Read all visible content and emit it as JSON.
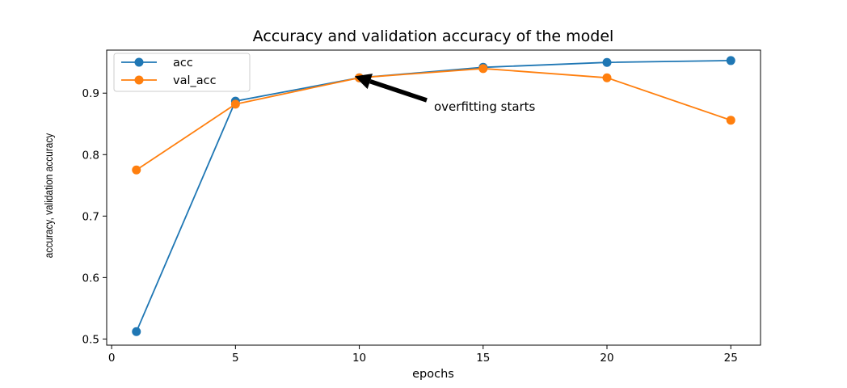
{
  "chart_data": {
    "type": "line",
    "title": "Accuracy and validation accuracy of the model",
    "xlabel": "epochs",
    "ylabel": "accuracy, validation accuracy",
    "xlim": [
      -0.2,
      26.2
    ],
    "ylim": [
      0.49,
      0.97
    ],
    "xticks": [
      0,
      5,
      10,
      15,
      20,
      25
    ],
    "yticks": [
      0.5,
      0.6,
      0.7,
      0.8,
      0.9
    ],
    "x": [
      1,
      5,
      10,
      15,
      20,
      25
    ],
    "series": [
      {
        "name": "acc",
        "color": "#1f77b4",
        "values": [
          0.512,
          0.887,
          0.925,
          0.942,
          0.95,
          0.953
        ]
      },
      {
        "name": "val_acc",
        "color": "#ff7f0e",
        "values": [
          0.775,
          0.882,
          0.925,
          0.94,
          0.925,
          0.856
        ]
      }
    ],
    "legend": {
      "placement": "top-left"
    },
    "grid": false,
    "annotation": {
      "text": "overfitting starts",
      "x": 10,
      "y": 0.925
    }
  }
}
